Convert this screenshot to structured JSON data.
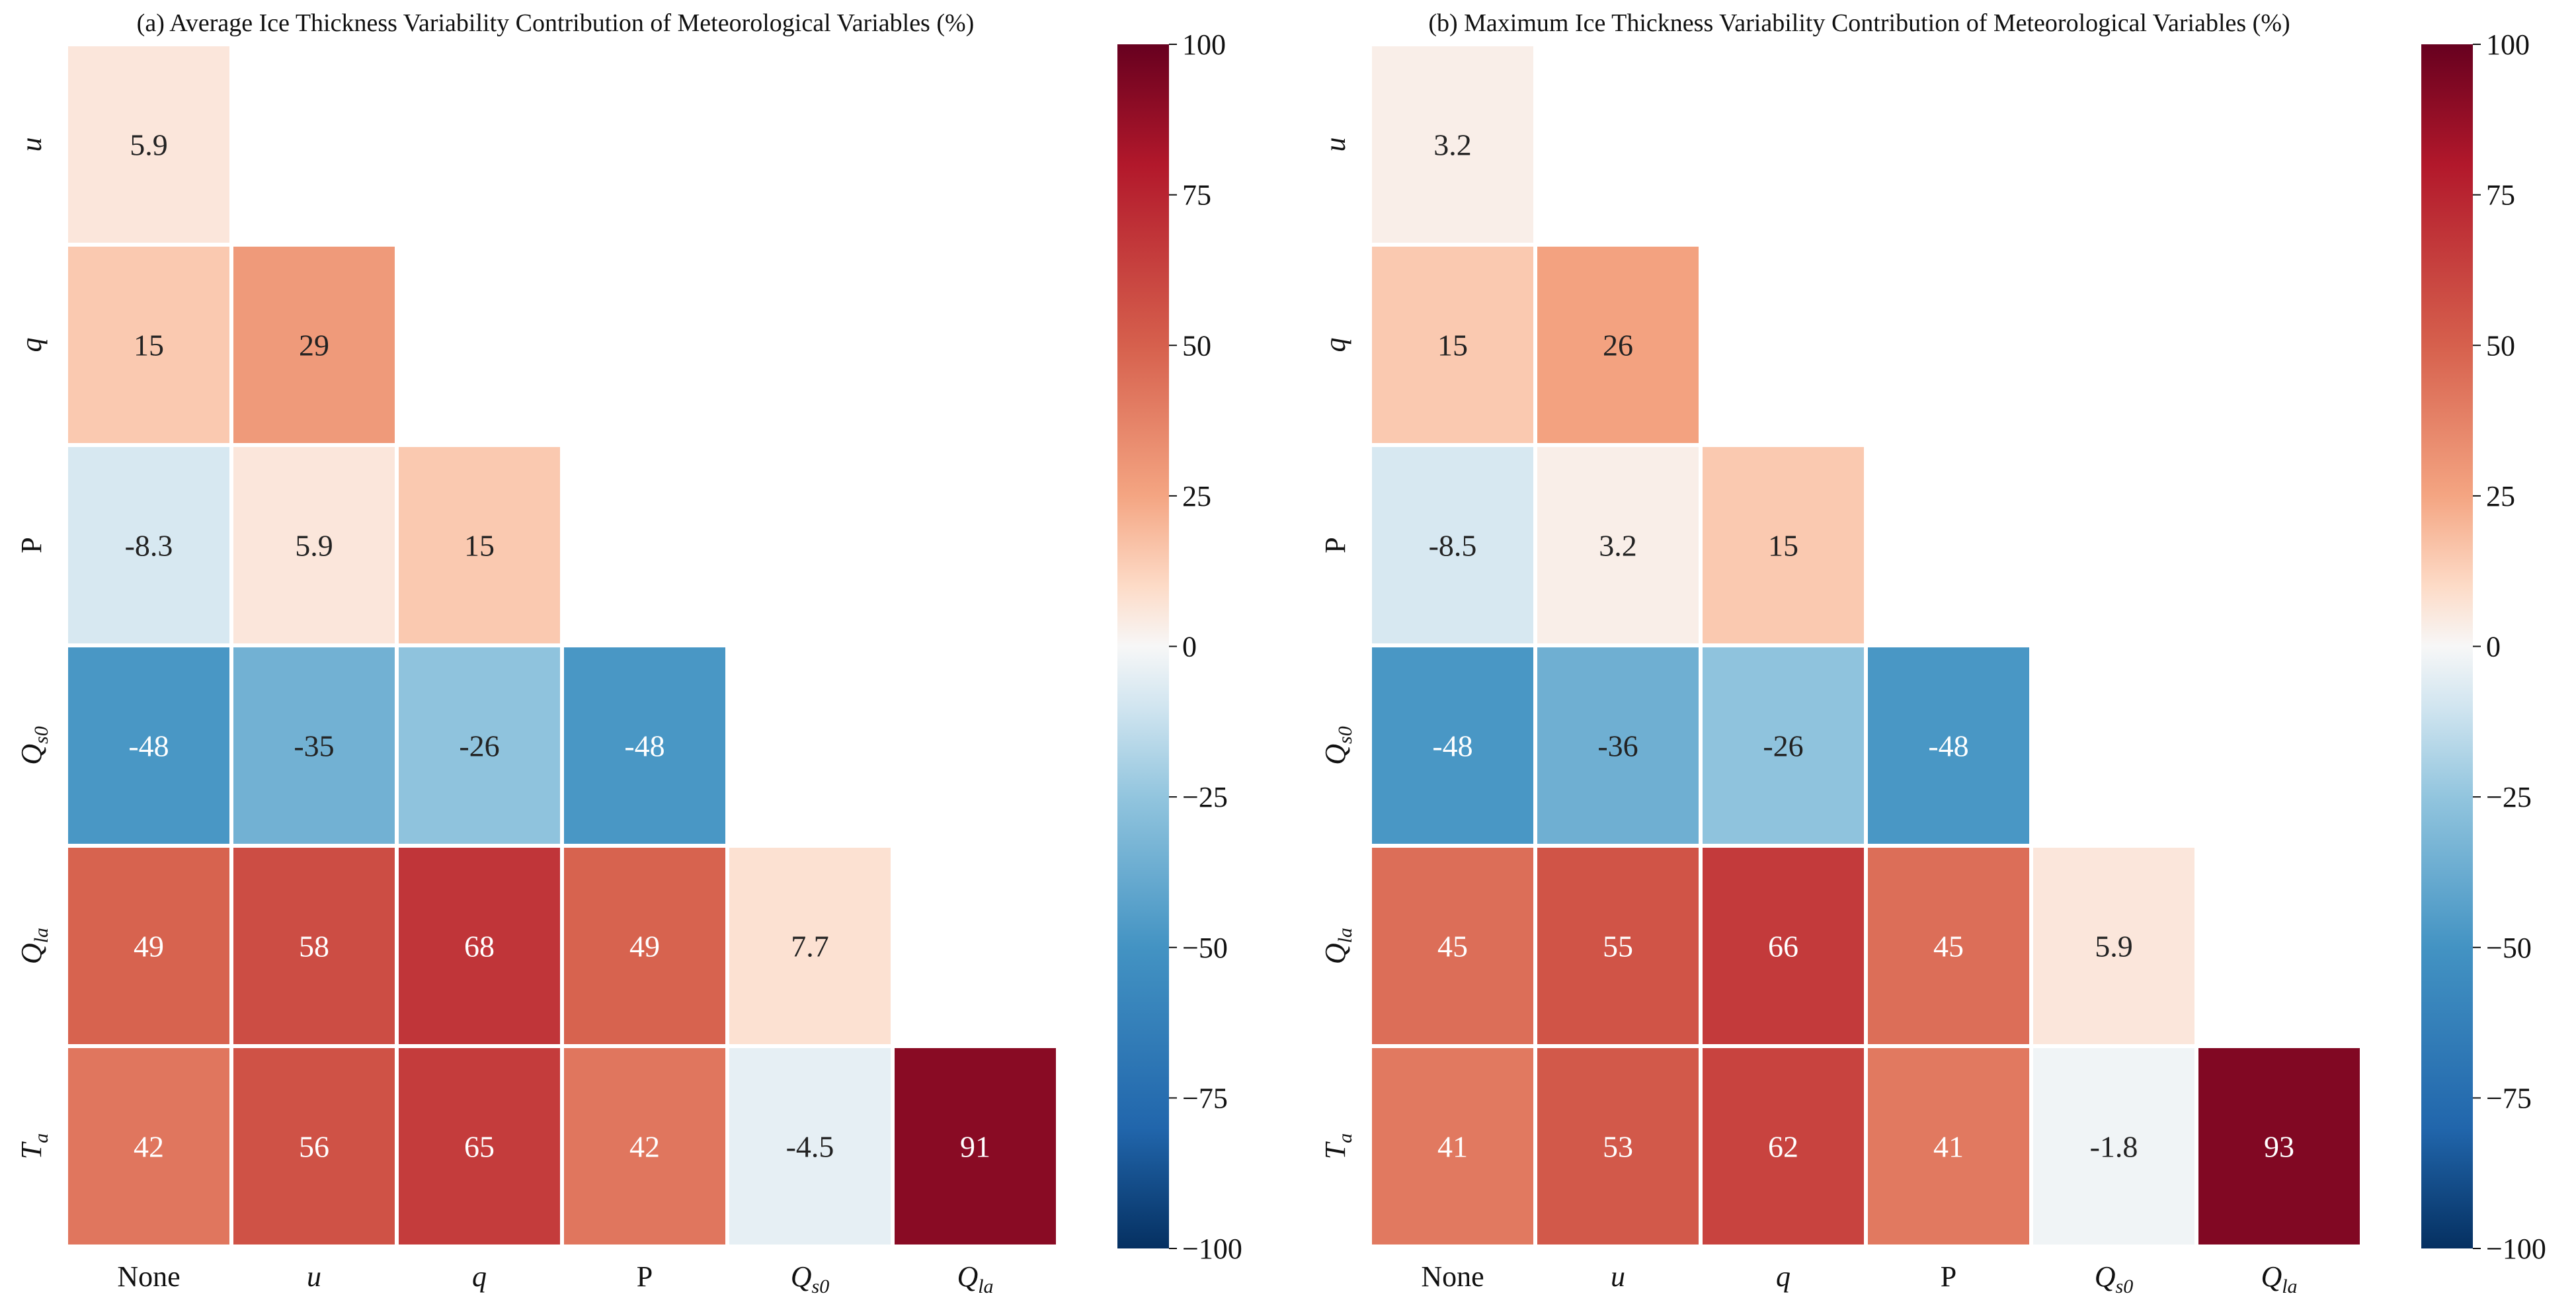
{
  "chart_data": [
    {
      "type": "heatmap",
      "title": "(a) Average Ice Thickness Variability Contribution of Meteorological Variables (%)",
      "x_categories": [
        "None",
        "u",
        "q",
        "P",
        "Q_s0",
        "Q_la"
      ],
      "y_categories": [
        "u",
        "q",
        "P",
        "Q_s0",
        "Q_la",
        "T_a"
      ],
      "lower_triangle": true,
      "rows": [
        [
          5.9
        ],
        [
          15,
          29
        ],
        [
          -8.3,
          5.9,
          15
        ],
        [
          -48,
          -35,
          -26,
          -48
        ],
        [
          49,
          58,
          68,
          49,
          7.7
        ],
        [
          42,
          56,
          65,
          42,
          -4.5,
          91
        ]
      ],
      "colorbar": {
        "min": -100,
        "max": 100,
        "ticks": [
          100,
          75,
          50,
          25,
          0,
          -25,
          -50,
          -75,
          -100
        ],
        "colormap": "RdBu_r"
      }
    },
    {
      "type": "heatmap",
      "title": "(b) Maximum Ice Thickness Variability Contribution of Meteorological Variables (%)",
      "x_categories": [
        "None",
        "u",
        "q",
        "P",
        "Q_s0",
        "Q_la"
      ],
      "y_categories": [
        "u",
        "q",
        "P",
        "Q_s0",
        "Q_la",
        "T_a"
      ],
      "lower_triangle": true,
      "rows": [
        [
          3.2
        ],
        [
          15,
          26
        ],
        [
          -8.5,
          3.2,
          15
        ],
        [
          -48,
          -36,
          -26,
          -48
        ],
        [
          45,
          55,
          66,
          45,
          5.9
        ],
        [
          41,
          53,
          62,
          41,
          -1.8,
          93
        ]
      ],
      "colorbar": {
        "min": -100,
        "max": 100,
        "ticks": [
          100,
          75,
          50,
          25,
          0,
          -25,
          -50,
          -75,
          -100
        ],
        "colormap": "RdBu_r"
      }
    }
  ],
  "tick_labels": {
    "None": "None",
    "u": "u",
    "q": "q",
    "P": "P",
    "Q_s0": {
      "base": "Q",
      "sub": "s0"
    },
    "Q_la": {
      "base": "Q",
      "sub": "la"
    },
    "T_a": {
      "base": "T",
      "sub": "a"
    }
  },
  "tick_labels_minus": {
    "-25": "−25",
    "-50": "−50",
    "-75": "−75",
    "-100": "−100"
  }
}
